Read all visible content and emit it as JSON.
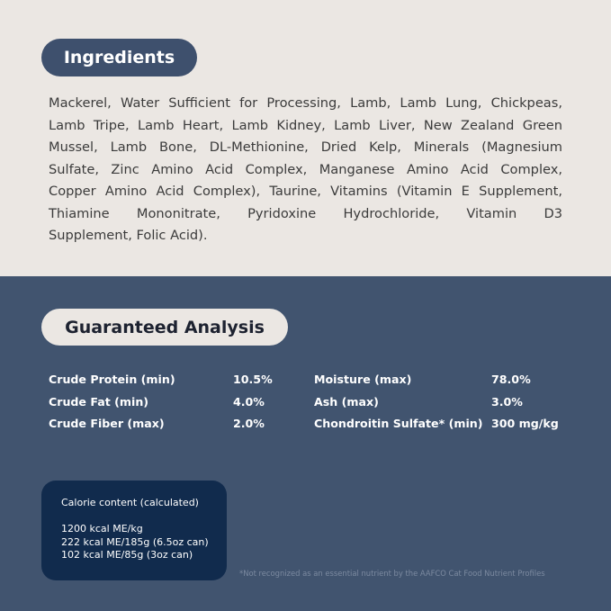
{
  "ingredients": {
    "title": "Ingredients",
    "lines": [
      "Mackerel, Water Sufficient for Processing, Lamb, Lamb Lung, Chickpeas,",
      "Lamb Tripe, Lamb Heart, Lamb Kidney, Lamb Liver, New Zealand Green",
      "Mussel, Lamb Bone, DL-Methionine, Dried Kelp, Minerals (Magnesium",
      "Sulfate, Zinc Amino Acid Complex, Manganese Amino Acid Complex,",
      "Copper Amino Acid Complex), Taurine, Vitamins (Vitamin E Supplement,",
      "Thiamine Mononitrate, Pyridoxine Hydrochloride, Vitamin D3",
      "Supplement, Folic Acid)."
    ]
  },
  "analysis": {
    "title": "Guaranteed Analysis",
    "left": [
      {
        "label": "Crude Protein (min)",
        "value": "10.5%"
      },
      {
        "label": "Crude Fat (min)",
        "value": "4.0%"
      },
      {
        "label": "Crude Fiber (max)",
        "value": "2.0%"
      }
    ],
    "right": [
      {
        "label": "Moisture (max)",
        "value": "78.0%"
      },
      {
        "label": "Ash (max)",
        "value": "3.0%"
      },
      {
        "label": "Chondroitin Sulfate* (min)",
        "value": "300 mg/kg"
      }
    ]
  },
  "calorie": {
    "title": "Calorie content (calculated)",
    "lines": [
      "1200 kcal ME/kg",
      "222 kcal ME/185g (6.5oz can)",
      "102 kcal ME/85g (3oz can)"
    ]
  },
  "footnote": "*Not recognized as an essential nutrient by the AAFCO Cat Food Nutrient Profiles",
  "colors": {
    "top_bg": "#ebe7e3",
    "bottom_bg": "#41546f",
    "calorie_bg": "#112b4d"
  }
}
